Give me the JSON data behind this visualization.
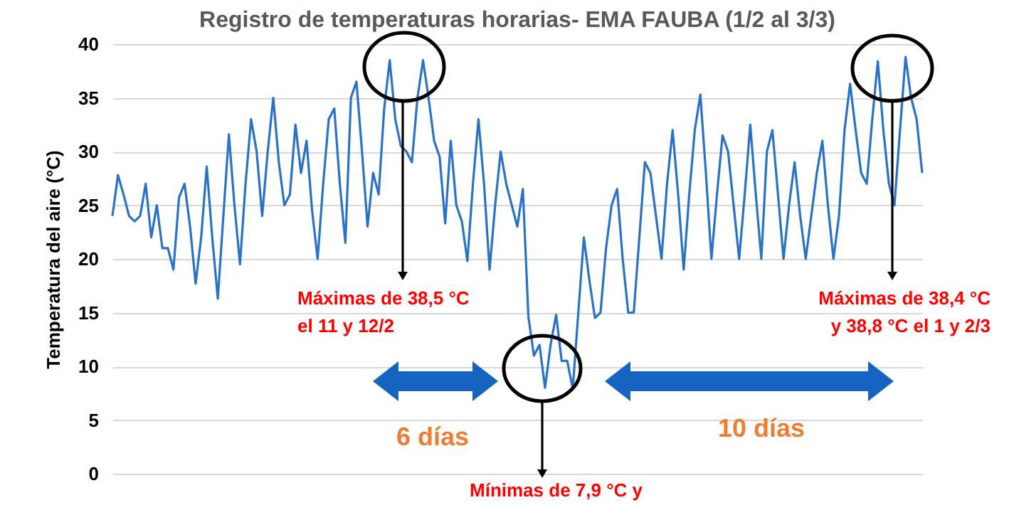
{
  "chart_data": {
    "type": "line",
    "title": "Registro de temperaturas horarias- EMA FAUBA (1/2 al 3/3)",
    "ylabel": "Temperatura del aire (°C)",
    "categories": [
      null,
      null,
      null,
      null,
      null,
      null,
      null,
      null,
      null,
      null,
      null,
      null,
      null,
      null,
      null,
      null,
      null,
      null,
      null,
      null,
      null,
      null,
      null,
      null,
      null,
      null,
      null,
      null,
      null,
      null,
      null,
      null,
      null,
      null,
      null,
      null,
      null,
      null,
      null,
      null,
      null,
      null,
      null,
      null,
      null,
      null,
      null,
      null,
      null,
      null,
      null,
      null,
      null,
      null,
      null,
      null,
      null,
      null,
      null,
      null,
      null,
      null,
      null,
      null,
      null,
      null,
      null,
      null,
      null,
      null,
      null,
      null,
      null,
      null,
      null,
      null,
      null,
      null,
      null,
      null,
      null,
      null,
      null,
      null,
      null,
      null,
      null,
      null,
      null,
      null,
      null,
      null,
      null,
      null,
      null,
      null,
      null,
      null,
      null,
      null,
      null,
      null,
      null,
      null,
      null,
      null,
      null,
      null,
      null,
      null,
      null,
      null,
      null,
      null,
      null,
      null,
      null,
      null,
      null,
      null,
      null,
      null,
      null,
      null,
      null,
      null,
      null,
      null,
      null,
      null,
      null,
      null,
      null,
      null,
      null,
      null,
      null,
      null,
      null,
      null,
      null,
      null,
      null,
      null,
      null,
      null,
      null
    ],
    "values": [
      24,
      27.8,
      26,
      24,
      23.5,
      24,
      27,
      22,
      25,
      21,
      21,
      19,
      25.7,
      27,
      23,
      17.7,
      22,
      28.6,
      22,
      16.3,
      24,
      31.6,
      25,
      19.5,
      27,
      33,
      30,
      24,
      30,
      35,
      29,
      25,
      26,
      32.5,
      28,
      31,
      24.5,
      20,
      27,
      33,
      34,
      27,
      21.5,
      35,
      36.5,
      30,
      23,
      28,
      26,
      34,
      38.5,
      33,
      30.5,
      30,
      29,
      35,
      38.5,
      35,
      31,
      29.5,
      23.3,
      31,
      25,
      23.5,
      19.8,
      27,
      33,
      27,
      19,
      25,
      30,
      27,
      25,
      23,
      26.5,
      14.6,
      11,
      12,
      8,
      12,
      14.8,
      10.5,
      10.5,
      7.9,
      15,
      22,
      18,
      14.5,
      15,
      21,
      25,
      26.5,
      20,
      15,
      15,
      22,
      29,
      28,
      24,
      20,
      27,
      32,
      26,
      19,
      26,
      32,
      35.3,
      28,
      20,
      26,
      31.5,
      30,
      25,
      20,
      26,
      32.5,
      26,
      20,
      30,
      32,
      26,
      20,
      25,
      29,
      24,
      20,
      24,
      28,
      31,
      25,
      20,
      24,
      32,
      36.3,
      32,
      28,
      27,
      33,
      38.4,
      32,
      27,
      25,
      32,
      38.8,
      35,
      33,
      28
    ],
    "color": "#2a72c8",
    "ylim": [
      0,
      40
    ],
    "yticks": [
      0,
      5,
      10,
      15,
      20,
      25,
      30,
      35,
      40
    ],
    "grid": "y",
    "tick_labels": "y",
    "line_style": "solid",
    "annotations": [
      "Máximas de 38,5 °C\nel 11 y 12/2",
      "Máximas de 38,4 °C\ny 38,8 °C el 1 y 2/3",
      "6 días",
      "10 días",
      "Mínimas de 7,9 °C y"
    ]
  }
}
